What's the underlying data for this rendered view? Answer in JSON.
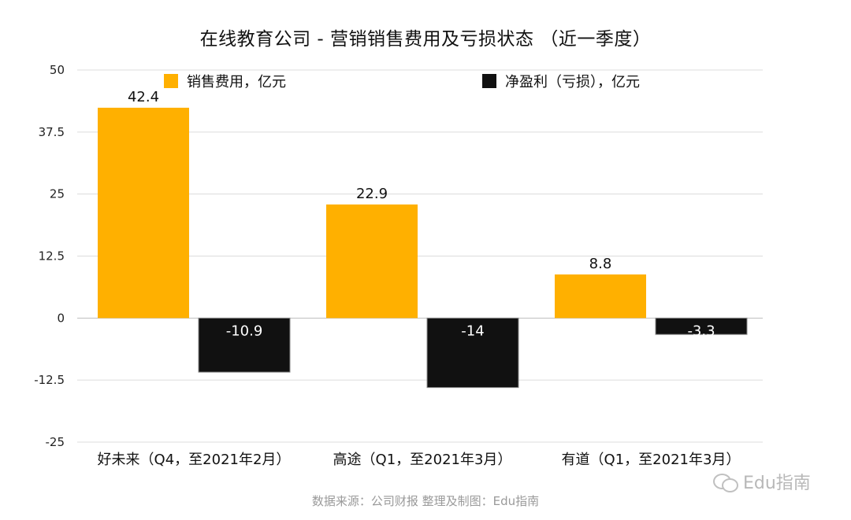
{
  "chart_data": {
    "type": "bar",
    "title": "在线教育公司 - 营销销售费用及亏损状态 （近一季度）",
    "categories": [
      "好未来（Q4，至2021年2月）",
      "高途（Q1，至2021年3月）",
      "有道（Q1，至2021年3月）"
    ],
    "series": [
      {
        "name": "销售费用，亿元",
        "color": "#FFB000",
        "values": [
          42.4,
          22.9,
          8.8
        ]
      },
      {
        "name": "净盈利（亏损），亿元",
        "color": "#111111",
        "values": [
          -10.9,
          -14,
          -3.3
        ]
      }
    ],
    "series_value_labels": [
      [
        "42.4",
        "22.9",
        "8.8"
      ],
      [
        "-10.9",
        "-14",
        "-3.3"
      ]
    ],
    "ylim": [
      -25,
      50
    ],
    "yticks": [
      "50",
      "37.5",
      "25",
      "12.5",
      "0",
      "-12.5",
      "-25"
    ],
    "ytick_values": [
      50,
      37.5,
      25,
      12.5,
      0,
      -12.5,
      -25
    ],
    "grid": true,
    "legend_position": "top"
  },
  "footer": {
    "source": "数据来源：公司财报    整理及制图：Edu指南"
  },
  "watermark": {
    "icon": "wechat-icon",
    "text": "Edu指南"
  }
}
